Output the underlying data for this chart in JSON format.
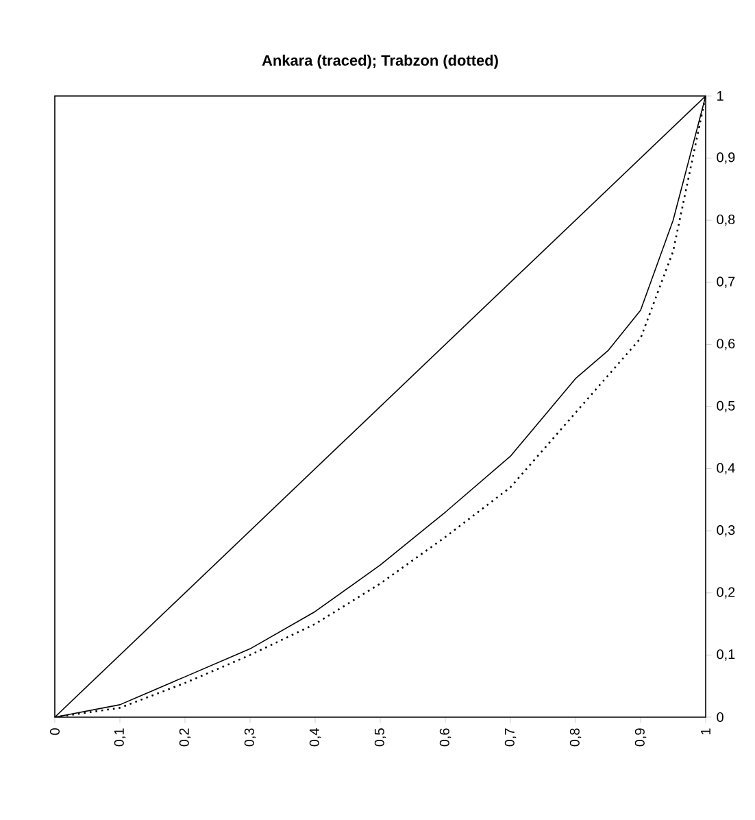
{
  "chart_data": {
    "type": "line",
    "title": "Ankara (traced); Trabzon (dotted)",
    "xlim": [
      0,
      1
    ],
    "ylim": [
      0,
      1
    ],
    "xticks": [
      0,
      {
        "value": 0.1,
        "label": "0,1"
      },
      {
        "value": 0.2,
        "label": "0,2"
      },
      {
        "value": 0.3,
        "label": "0,3"
      },
      {
        "value": 0.4,
        "label": "0,4"
      },
      {
        "value": 0.5,
        "label": "0,5"
      },
      {
        "value": 0.6,
        "label": "0,6"
      },
      {
        "value": 0.7,
        "label": "0,7"
      },
      {
        "value": 0.8,
        "label": "0,8"
      },
      {
        "value": 0.9,
        "label": "0,9"
      },
      1
    ],
    "yticks": [
      0,
      {
        "value": 0.1,
        "label": "0,1"
      },
      {
        "value": 0.2,
        "label": "0,2"
      },
      {
        "value": 0.3,
        "label": "0,3"
      },
      {
        "value": 0.4,
        "label": "0,4"
      },
      {
        "value": 0.5,
        "label": "0,5"
      },
      {
        "value": 0.6,
        "label": "0,6"
      },
      {
        "value": 0.7,
        "label": "0,7"
      },
      {
        "value": 0.8,
        "label": "0,8"
      },
      {
        "value": 0.9,
        "label": "0,9"
      },
      1
    ],
    "grid": false,
    "series": [
      {
        "color": "#000000",
        "line_style": "solid",
        "x": [
          0,
          1
        ],
        "values": [
          0,
          1
        ]
      },
      {
        "color": "#000000",
        "line_style": "solid",
        "x": [
          0,
          0.1,
          0.2,
          0.3,
          0.4,
          0.5,
          0.6,
          0.7,
          0.8,
          0.85,
          0.9,
          0.95,
          1
        ],
        "values": [
          0,
          0.02,
          0.065,
          0.11,
          0.17,
          0.245,
          0.33,
          0.42,
          0.545,
          0.59,
          0.655,
          0.8,
          1
        ]
      },
      {
        "color": "#000000",
        "line_style": "dotted",
        "x": [
          0,
          0.1,
          0.2,
          0.3,
          0.4,
          0.5,
          0.6,
          0.7,
          0.8,
          0.9,
          0.95,
          0.97,
          1
        ],
        "values": [
          0,
          0.015,
          0.055,
          0.1,
          0.15,
          0.215,
          0.29,
          0.37,
          0.49,
          0.61,
          0.75,
          0.85,
          1
        ]
      }
    ]
  }
}
